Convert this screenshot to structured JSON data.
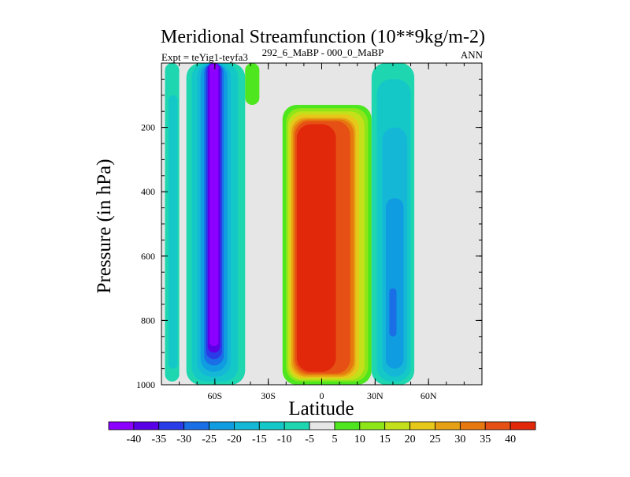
{
  "chart_data": {
    "type": "heatmap",
    "title": "Meridional Streamfunction (10**9kg/m-2)",
    "experiment": "Expt = teYig1-teyfa3",
    "period": "292_6_MaBP - 000_0_MaBP",
    "season": "ANN",
    "xlabel": "Latitude",
    "ylabel": "Pressure (in hPa)",
    "xlim": [
      -90,
      90
    ],
    "ylim": [
      1000,
      0
    ],
    "x_ticks": [
      {
        "value": -60,
        "label": "60S"
      },
      {
        "value": -30,
        "label": "30S"
      },
      {
        "value": 0,
        "label": "0"
      },
      {
        "value": 30,
        "label": "30N"
      },
      {
        "value": 60,
        "label": "60N"
      }
    ],
    "y_ticks": [
      {
        "value": 200,
        "label": "200"
      },
      {
        "value": 400,
        "label": "400"
      },
      {
        "value": 600,
        "label": "600"
      },
      {
        "value": 800,
        "label": "800"
      },
      {
        "value": 1000,
        "label": "1000"
      }
    ],
    "background_color": "#e6e6e6",
    "colorbar": {
      "labels": [
        "-40",
        "-35",
        "-30",
        "-25",
        "-20",
        "-15",
        "-10",
        "-5",
        "5",
        "10",
        "15",
        "20",
        "25",
        "30",
        "35",
        "40"
      ],
      "colors": [
        "#8c00ff",
        "#5a00e6",
        "#2a3be8",
        "#1a6ee6",
        "#0f9ce0",
        "#14b8d6",
        "#14c8c8",
        "#1ed6b0",
        "#e6e6e6",
        "#4ee61e",
        "#8ee619",
        "#c4e01a",
        "#e6c81a",
        "#e6a014",
        "#e6780f",
        "#e65014",
        "#e1280a"
      ]
    },
    "cells": [
      {
        "name": "contour-neg5-band-a",
        "level": "-5",
        "color": "#1ed6b0",
        "lat": [
          -88,
          -80
        ],
        "p": [
          0,
          990
        ]
      },
      {
        "name": "contour-neg10-band-a",
        "level": "-10",
        "color": "#14c8c8",
        "lat": [
          -86,
          -81
        ],
        "p": [
          100,
          950
        ]
      },
      {
        "name": "contour-neg5-band-b",
        "level": "-5",
        "color": "#1ed6b0",
        "lat": [
          -76,
          -43
        ],
        "p": [
          0,
          1000
        ]
      },
      {
        "name": "contour-neg10-band-b",
        "level": "-10",
        "color": "#14c8c8",
        "lat": [
          -73,
          -47
        ],
        "p": [
          0,
          990
        ]
      },
      {
        "name": "contour-neg15-band",
        "level": "-15",
        "color": "#14b8d6",
        "lat": [
          -70,
          -51
        ],
        "p": [
          0,
          975
        ]
      },
      {
        "name": "contour-neg20-band",
        "level": "-20",
        "color": "#0f9ce0",
        "lat": [
          -68,
          -53
        ],
        "p": [
          0,
          960
        ]
      },
      {
        "name": "contour-neg25-band",
        "level": "-25",
        "color": "#1a6ee6",
        "lat": [
          -66,
          -55
        ],
        "p": [
          0,
          940
        ]
      },
      {
        "name": "contour-neg30-band",
        "level": "-30",
        "color": "#2a3be8",
        "lat": [
          -65,
          -56
        ],
        "p": [
          0,
          920
        ]
      },
      {
        "name": "contour-neg35-band",
        "level": "-35",
        "color": "#5a00e6",
        "lat": [
          -64,
          -57
        ],
        "p": [
          0,
          900
        ]
      },
      {
        "name": "contour-neg40-core",
        "level": "-40",
        "color": "#8c00ff",
        "lat": [
          -63,
          -58
        ],
        "p": [
          0,
          880
        ]
      },
      {
        "name": "contour-pos5-upper-a",
        "level": "5",
        "color": "#4ee61e",
        "lat": [
          -43,
          -35
        ],
        "p": [
          0,
          130
        ]
      },
      {
        "name": "contour-pos5-upper-b",
        "level": "5",
        "color": "#4ee61e",
        "lat": [
          40,
          50
        ],
        "p": [
          0,
          260
        ]
      },
      {
        "name": "contour-pos5-hadley",
        "level": "5",
        "color": "#4ee61e",
        "lat": [
          -22,
          28
        ],
        "p": [
          130,
          1000
        ]
      },
      {
        "name": "contour-pos10-hadley",
        "level": "10",
        "color": "#8ee619",
        "lat": [
          -20,
          26
        ],
        "p": [
          140,
          990
        ]
      },
      {
        "name": "contour-pos15-hadley",
        "level": "15",
        "color": "#c4e01a",
        "lat": [
          -19,
          24
        ],
        "p": [
          150,
          985
        ]
      },
      {
        "name": "contour-pos20-hadley",
        "level": "20",
        "color": "#e6c81a",
        "lat": [
          -18,
          21
        ],
        "p": [
          160,
          980
        ]
      },
      {
        "name": "contour-pos25-hadley",
        "level": "25",
        "color": "#e6a014",
        "lat": [
          -17,
          19
        ],
        "p": [
          170,
          975
        ]
      },
      {
        "name": "contour-pos30-hadley",
        "level": "30",
        "color": "#e6780f",
        "lat": [
          -16,
          18
        ],
        "p": [
          175,
          970
        ]
      },
      {
        "name": "contour-pos35-hadley",
        "level": "35",
        "color": "#e65014",
        "lat": [
          -15,
          16
        ],
        "p": [
          180,
          965
        ]
      },
      {
        "name": "contour-pos40-hadley-core",
        "level": "40",
        "color": "#e1280a",
        "lat": [
          -14,
          8
        ],
        "p": [
          190,
          960
        ]
      },
      {
        "name": "contour-neg5-ferrel",
        "level": "-5",
        "color": "#1ed6b0",
        "lat": [
          28,
          52
        ],
        "p": [
          0,
          1000
        ]
      },
      {
        "name": "contour-neg10-ferrel",
        "level": "-10",
        "color": "#14c8c8",
        "lat": [
          31,
          50
        ],
        "p": [
          50,
          990
        ]
      },
      {
        "name": "contour-neg15-ferrel",
        "level": "-15",
        "color": "#14b8d6",
        "lat": [
          34,
          48
        ],
        "p": [
          200,
          975
        ]
      },
      {
        "name": "contour-neg20-ferrel",
        "level": "-20",
        "color": "#0f9ce0",
        "lat": [
          36,
          46
        ],
        "p": [
          420,
          950
        ]
      },
      {
        "name": "contour-neg25-ferrel",
        "level": "-25",
        "color": "#1a6ee6",
        "lat": [
          38,
          42
        ],
        "p": [
          700,
          850
        ]
      }
    ]
  }
}
